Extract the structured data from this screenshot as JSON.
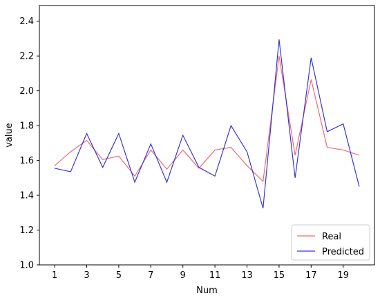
{
  "chart_data": {
    "type": "line",
    "xlabel": "Num",
    "ylabel": "value",
    "x": [
      1,
      2,
      3,
      4,
      5,
      6,
      7,
      8,
      9,
      10,
      11,
      12,
      13,
      14,
      15,
      16,
      17,
      18,
      19,
      20
    ],
    "xticks": [
      "1",
      "3",
      "5",
      "7",
      "9",
      "11",
      "13",
      "15",
      "17",
      "19"
    ],
    "yticks": [
      "1.0",
      "1.2",
      "1.4",
      "1.6",
      "1.8",
      "2.0",
      "2.2",
      "2.4"
    ],
    "xlim": [
      0.05,
      20.95
    ],
    "ylim": [
      1.0,
      2.49
    ],
    "grid": false,
    "legend_position": "lower-right",
    "series": [
      {
        "name": "Real",
        "color": "#f26b6b",
        "values": [
          1.57,
          1.65,
          1.715,
          1.605,
          1.625,
          1.51,
          1.66,
          1.55,
          1.66,
          1.555,
          1.66,
          1.675,
          1.57,
          1.48,
          2.2,
          1.63,
          2.065,
          1.675,
          1.66,
          1.63
        ]
      },
      {
        "name": "Predicted",
        "color": "#3535d8",
        "values": [
          1.555,
          1.535,
          1.755,
          1.56,
          1.755,
          1.475,
          1.695,
          1.475,
          1.745,
          1.56,
          1.51,
          1.8,
          1.65,
          1.325,
          2.295,
          1.5,
          2.19,
          1.765,
          1.81,
          1.45
        ]
      }
    ]
  }
}
